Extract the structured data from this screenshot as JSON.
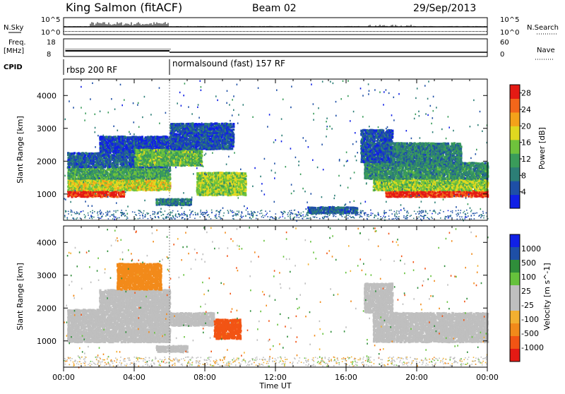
{
  "header": {
    "station": "King Salmon (fitACF)",
    "beam": "Beam 02",
    "date": "29/Sep/2013"
  },
  "aux_panels": {
    "nsky_label": "N.Sky",
    "nsky_ticks": [
      "10^5",
      "10^0"
    ],
    "nsearch_label": "N.Search",
    "nsearch_ticks": [
      "10^5",
      "10^0"
    ],
    "freq_label_1": "Freq.",
    "freq_label_2": "[MHz]",
    "freq_ticks": [
      "18",
      "8"
    ],
    "nave_label": "Nave",
    "nave_ticks": [
      "60",
      "0"
    ],
    "cpid_label": "CPID",
    "cpid_modes": [
      {
        "label": "rbsp 200 RF",
        "start_hour": 0,
        "end_hour": 6
      },
      {
        "label": "normalsound (fast) 157 RF",
        "start_hour": 6,
        "end_hour": 24
      }
    ]
  },
  "colors": {
    "power_scale": [
      "#1020e6",
      "#1e4fa6",
      "#2c7e76",
      "#3a9c5a",
      "#6fc23c",
      "#e0d820",
      "#f4a21a",
      "#f2661a",
      "#e41a14"
    ],
    "velocity_scale": [
      "#e41a14",
      "#f25414",
      "#f28a1a",
      "#f2b030",
      "#bfbfbf",
      "#bfbfbf",
      "#66c23c",
      "#2f8e3a",
      "#1e4fa6",
      "#1020e6"
    ]
  },
  "chart_data": [
    {
      "type": "heatmap",
      "name": "power-panel",
      "ylabel": "Slant Range [km]",
      "yticks": [
        1000,
        2000,
        3000,
        4000
      ],
      "ylim": [
        200,
        4500
      ],
      "xlim": [
        0,
        24
      ],
      "colorbar_label": "Power [dB]",
      "colorbar_ticks": [
        4,
        8,
        12,
        16,
        20,
        24,
        28
      ],
      "colorbar_range": [
        0,
        30
      ],
      "bands": [
        {
          "t0": 0.2,
          "t1": 3.4,
          "r0": 950,
          "r1": 1150,
          "value": 28
        },
        {
          "t0": 3.4,
          "t1": 6.0,
          "r0": 1200,
          "r1": 1400,
          "value": 26
        },
        {
          "t0": 0.2,
          "t1": 6.0,
          "r0": 1150,
          "r1": 1500,
          "value": 18
        },
        {
          "t0": 0.2,
          "t1": 6.0,
          "r0": 1500,
          "r1": 1850,
          "value": 12
        },
        {
          "t0": 0.2,
          "t1": 6.0,
          "r0": 1850,
          "r1": 2300,
          "value": 6
        },
        {
          "t0": 2.0,
          "t1": 6.0,
          "r0": 2300,
          "r1": 2800,
          "value": 4
        },
        {
          "t0": 4.0,
          "t1": 7.8,
          "r0": 1900,
          "r1": 2400,
          "value": 14
        },
        {
          "t0": 6.0,
          "t1": 9.6,
          "r0": 2400,
          "r1": 3200,
          "value": 5
        },
        {
          "t0": 7.5,
          "t1": 10.3,
          "r0": 1000,
          "r1": 1700,
          "value": 16
        },
        {
          "t0": 5.2,
          "t1": 7.2,
          "r0": 700,
          "r1": 900,
          "value": 8
        },
        {
          "t0": 18.2,
          "t1": 24.0,
          "r0": 950,
          "r1": 1150,
          "value": 28
        },
        {
          "t0": 17.5,
          "t1": 24.0,
          "r0": 1150,
          "r1": 1500,
          "value": 16
        },
        {
          "t0": 17.0,
          "t1": 24.0,
          "r0": 1500,
          "r1": 2000,
          "value": 10
        },
        {
          "t0": 16.8,
          "t1": 18.6,
          "r0": 2000,
          "r1": 3000,
          "value": 5
        },
        {
          "t0": 18.6,
          "t1": 22.5,
          "r0": 1900,
          "r1": 2600,
          "value": 9
        },
        {
          "t0": 13.8,
          "t1": 16.6,
          "r0": 450,
          "r1": 650,
          "value": 6
        }
      ]
    },
    {
      "type": "heatmap",
      "name": "velocity-panel",
      "ylabel": "Slant Range [km]",
      "yticks": [
        1000,
        2000,
        3000,
        4000
      ],
      "ylim": [
        200,
        4500
      ],
      "xlim": [
        0,
        24
      ],
      "xlabel": "Time UT",
      "xticks": [
        "00:00",
        "04:00",
        "08:00",
        "12:00",
        "16:00",
        "20:00",
        "00:00"
      ],
      "colorbar_label": "Velocity [m s^-1]",
      "colorbar_ticks": [
        "1000",
        "500",
        "100",
        "25",
        "-25",
        "-100",
        "-500",
        "-1000"
      ],
      "bands": [
        {
          "t0": 0.2,
          "t1": 6.0,
          "r0": 1000,
          "r1": 2000,
          "value": 0
        },
        {
          "t0": 2.0,
          "t1": 6.0,
          "r0": 2000,
          "r1": 2600,
          "value": 0
        },
        {
          "t0": 6.0,
          "t1": 8.5,
          "r0": 1500,
          "r1": 1900,
          "value": 0
        },
        {
          "t0": 8.5,
          "t1": 10.0,
          "r0": 1100,
          "r1": 1700,
          "value": -150
        },
        {
          "t0": 5.2,
          "t1": 7.0,
          "r0": 700,
          "r1": 900,
          "value": 0
        },
        {
          "t0": 17.5,
          "t1": 24.0,
          "r0": 1000,
          "r1": 1900,
          "value": 0
        },
        {
          "t0": 17.0,
          "t1": 18.6,
          "r0": 1900,
          "r1": 2800,
          "value": 20
        },
        {
          "t0": 3.0,
          "t1": 5.5,
          "r0": 2600,
          "r1": 3400,
          "value": -80
        }
      ]
    }
  ]
}
